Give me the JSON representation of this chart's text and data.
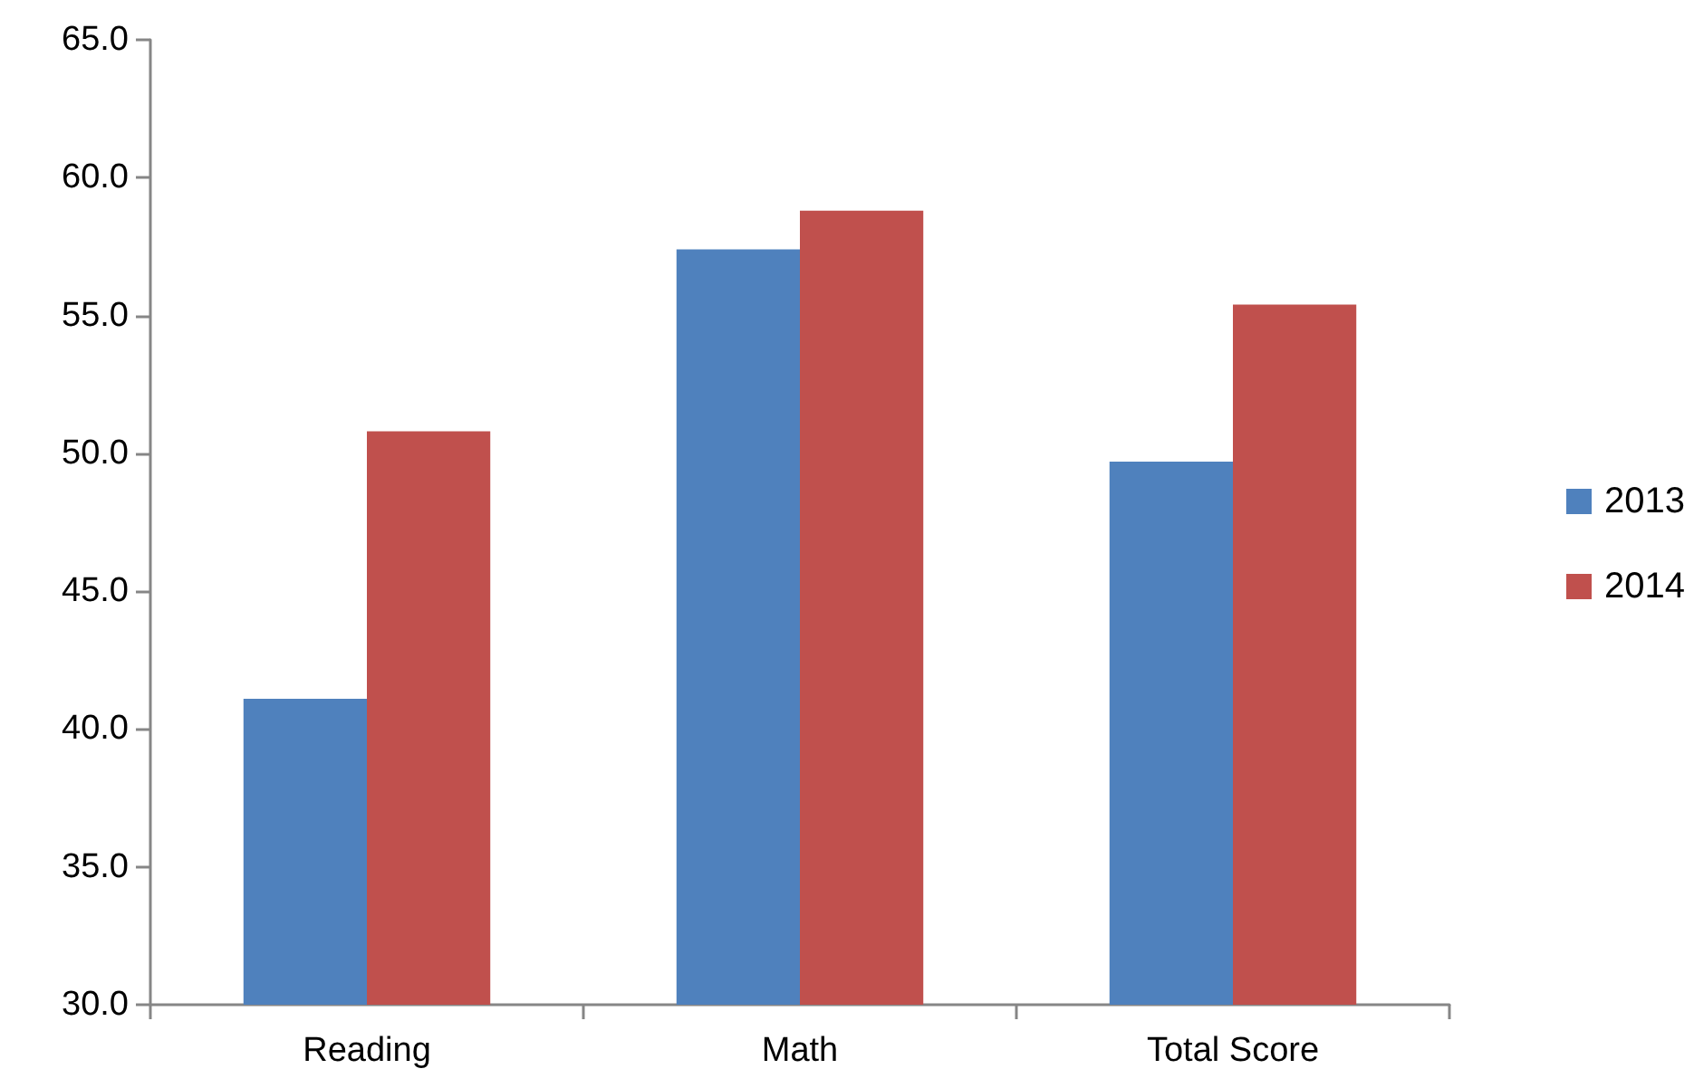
{
  "chart_data": {
    "type": "bar",
    "categories": [
      "Reading",
      "Math",
      "Total Score"
    ],
    "series": [
      {
        "name": "2013",
        "color": "#4f81bd",
        "values": [
          41.1,
          57.4,
          49.7
        ]
      },
      {
        "name": "2014",
        "color": "#c0504d",
        "values": [
          50.8,
          58.8,
          55.4
        ]
      }
    ],
    "ylim": [
      30,
      65
    ],
    "yticks": [
      {
        "value": 30,
        "label": "30.0"
      },
      {
        "value": 35,
        "label": "35.0"
      },
      {
        "value": 40,
        "label": "40.0"
      },
      {
        "value": 45,
        "label": "45.0"
      },
      {
        "value": 50,
        "label": "50.0"
      },
      {
        "value": 55,
        "label": "55.0"
      },
      {
        "value": 60,
        "label": "60.0"
      },
      {
        "value": 65,
        "label": "65.0"
      }
    ],
    "grid": false,
    "legend": "right"
  }
}
